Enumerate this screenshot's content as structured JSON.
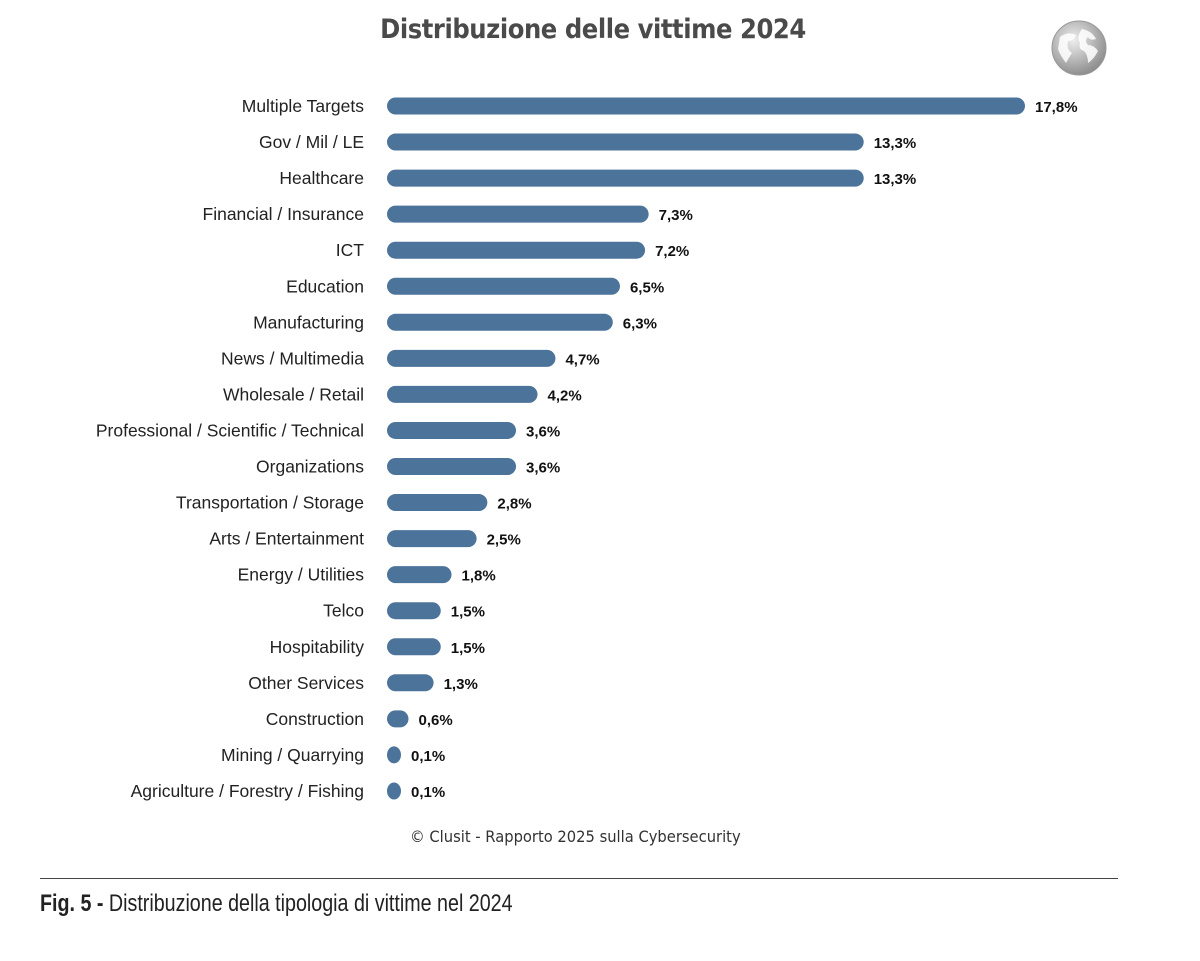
{
  "chart_data": {
    "type": "bar",
    "orientation": "horizontal",
    "title": "Distribuzione delle vittime 2024",
    "categories": [
      "Multiple Targets",
      "Gov / Mil / LE",
      "Healthcare",
      "Financial / Insurance",
      "ICT",
      "Education",
      "Manufacturing",
      "News / Multimedia",
      "Wholesale / Retail",
      "Professional / Scientific / Technical",
      "Organizations",
      "Transportation / Storage",
      "Arts / Entertainment",
      "Energy / Utilities",
      "Telco",
      "Hospitability",
      "Other Services",
      "Construction",
      "Mining / Quarrying",
      "Agriculture / Forestry / Fishing"
    ],
    "values": [
      17.8,
      13.3,
      13.3,
      7.3,
      7.2,
      6.5,
      6.3,
      4.7,
      4.2,
      3.6,
      3.6,
      2.8,
      2.5,
      1.8,
      1.5,
      1.5,
      1.3,
      0.6,
      0.1,
      0.1
    ],
    "value_labels": [
      "17,8%",
      "13,3%",
      "13,3%",
      "7,3%",
      "7,2%",
      "6,5%",
      "6,3%",
      "4,7%",
      "4,2%",
      "3,6%",
      "3,6%",
      "2,8%",
      "2,5%",
      "1,8%",
      "1,5%",
      "1,5%",
      "1,3%",
      "0,6%",
      "0,1%",
      "0,1%"
    ],
    "unit": "%",
    "bar_color": "#4c7399",
    "grid": false,
    "legend": "none"
  },
  "credit": "© Clusit - Rapporto 2025 sulla Cybersecurity",
  "caption": {
    "prefix": "Fig. 5 -",
    "text": " Distribuzione della tipologia di vittime nel 2024"
  },
  "icons": {
    "logo": "globe-icon"
  }
}
